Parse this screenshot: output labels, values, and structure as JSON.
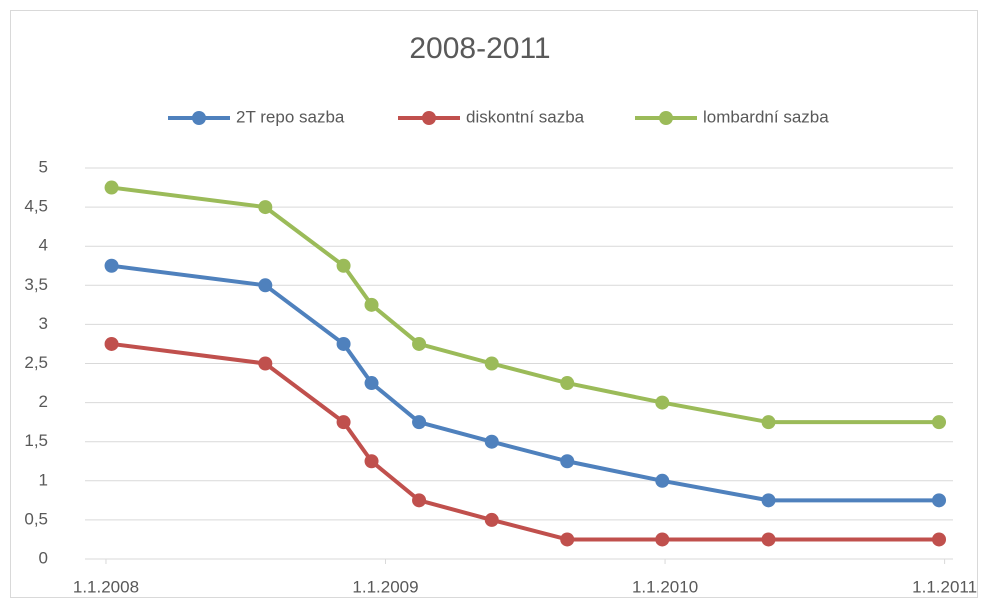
{
  "chart_data": {
    "type": "line",
    "title": "2008-2011",
    "x": [
      2008.02,
      2008.57,
      2008.85,
      2008.95,
      2009.12,
      2009.38,
      2009.65,
      2009.99,
      2010.37,
      2010.98
    ],
    "series": [
      {
        "name": "2T repo sazba",
        "color": "#4f81bd",
        "values": [
          3.75,
          3.5,
          2.75,
          2.25,
          1.75,
          1.5,
          1.25,
          1,
          0.75,
          0.75
        ]
      },
      {
        "name": "diskontní sazba",
        "color": "#c0504d",
        "values": [
          2.75,
          2.5,
          1.75,
          1.25,
          0.75,
          0.5,
          0.25,
          0.25,
          0.25,
          0.25
        ]
      },
      {
        "name": "lombardní sazba",
        "color": "#9bbb59",
        "values": [
          4.75,
          4.5,
          3.75,
          3.25,
          2.75,
          2.5,
          2.25,
          2,
          1.75,
          1.75
        ]
      }
    ],
    "xlim": [
      2007.925,
      2011.03
    ],
    "xticks": [
      {
        "value": 2008,
        "label": "1.1.2008"
      },
      {
        "value": 2009,
        "label": "1.1.2009"
      },
      {
        "value": 2010,
        "label": "1.1.2010"
      },
      {
        "value": 2011,
        "label": "1.1.2011"
      }
    ],
    "ylim": [
      0,
      5
    ],
    "yticks": [
      0,
      {
        "value": 0.5,
        "label": "0,5"
      },
      1,
      {
        "value": 1.5,
        "label": "1,5"
      },
      2,
      {
        "value": 2.5,
        "label": "2,5"
      },
      3,
      {
        "value": 3.5,
        "label": "3,5"
      },
      4,
      {
        "value": 4.5,
        "label": "4,5"
      },
      5
    ],
    "grid": true,
    "legend": "top"
  }
}
